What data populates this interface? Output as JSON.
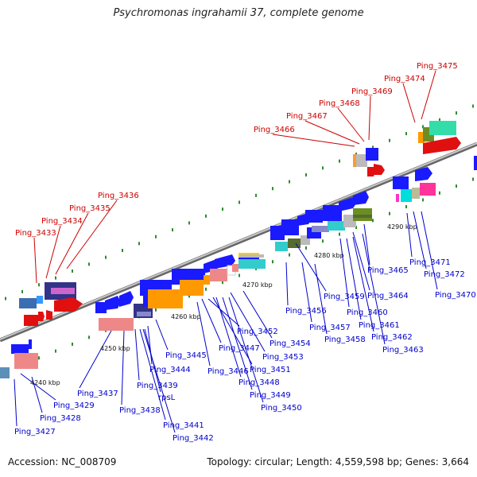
{
  "title": "Psychromonas ingrahamii 37, complete genome",
  "footer": {
    "accession": "Accession: NC_008709",
    "summary": "Topology: circular; Length: 4,559,598 bp; Genes: 3,664"
  },
  "colors": {
    "label_red": "#cc0000",
    "label_blue": "#0000cc",
    "backbone": "#999999",
    "dots": "#2e8b2e"
  },
  "scale_labels": [
    "4240 kbp",
    "4250 kbp",
    "4260 kbp",
    "4270 kbp",
    "4280 kbp",
    "4290 kbp"
  ],
  "labels": [
    {
      "text": "Ping_3433",
      "color": "red"
    },
    {
      "text": "Ping_3434",
      "color": "red"
    },
    {
      "text": "Ping_3435",
      "color": "red"
    },
    {
      "text": "Ping_3436",
      "color": "red"
    },
    {
      "text": "Ping_3466",
      "color": "red"
    },
    {
      "text": "Ping_3467",
      "color": "red"
    },
    {
      "text": "Ping_3468",
      "color": "red"
    },
    {
      "text": "Ping_3469",
      "color": "red"
    },
    {
      "text": "Ping_3474",
      "color": "red"
    },
    {
      "text": "Ping_3475",
      "color": "red"
    },
    {
      "text": "Ping_3427",
      "color": "blue"
    },
    {
      "text": "Ping_3428",
      "color": "blue"
    },
    {
      "text": "Ping_3429",
      "color": "blue"
    },
    {
      "text": "Ping_3437",
      "color": "blue"
    },
    {
      "text": "Ping_3438",
      "color": "blue"
    },
    {
      "text": "Ping_3439",
      "color": "blue"
    },
    {
      "text": "rpsL",
      "color": "blue"
    },
    {
      "text": "Ping_3441",
      "color": "blue"
    },
    {
      "text": "Ping_3442",
      "color": "blue"
    },
    {
      "text": "Ping_3444",
      "color": "blue"
    },
    {
      "text": "Ping_3445",
      "color": "blue"
    },
    {
      "text": "Ping_3446",
      "color": "blue"
    },
    {
      "text": "Ping_3447",
      "color": "blue"
    },
    {
      "text": "Ping_3448",
      "color": "blue"
    },
    {
      "text": "Ping_3449",
      "color": "blue"
    },
    {
      "text": "Ping_3450",
      "color": "blue"
    },
    {
      "text": "Ping_3451",
      "color": "blue"
    },
    {
      "text": "Ping_3452",
      "color": "blue"
    },
    {
      "text": "Ping_3453",
      "color": "blue"
    },
    {
      "text": "Ping_3454",
      "color": "blue"
    },
    {
      "text": "Ping_3456",
      "color": "blue"
    },
    {
      "text": "Ping_3457",
      "color": "blue"
    },
    {
      "text": "Ping_3458",
      "color": "blue"
    },
    {
      "text": "Ping_3459",
      "color": "blue"
    },
    {
      "text": "Ping_3460",
      "color": "blue"
    },
    {
      "text": "Ping_3461",
      "color": "blue"
    },
    {
      "text": "Ping_3462",
      "color": "blue"
    },
    {
      "text": "Ping_3463",
      "color": "blue"
    },
    {
      "text": "Ping_3464",
      "color": "blue"
    },
    {
      "text": "Ping_3465",
      "color": "blue"
    },
    {
      "text": "Ping_3470",
      "color": "blue"
    },
    {
      "text": "Ping_3471",
      "color": "blue"
    },
    {
      "text": "Ping_3472",
      "color": "blue"
    }
  ]
}
